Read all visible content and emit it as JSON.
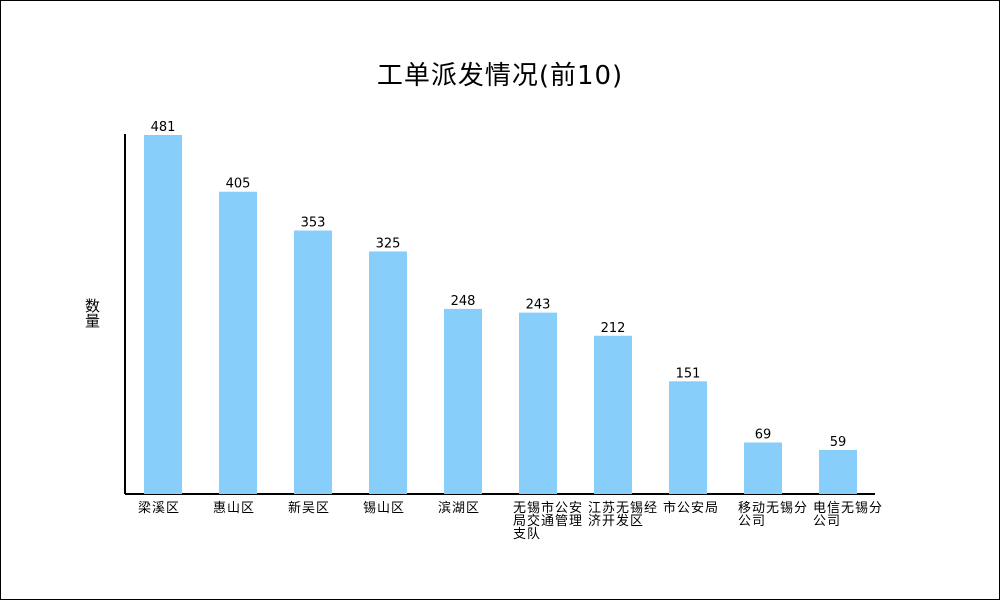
{
  "chart_data": {
    "type": "bar",
    "title": "工单派发情况(前10)",
    "ylabel": "数量",
    "xlabel": "",
    "categories": [
      "梁溪区",
      "惠山区",
      "新吴区",
      "锡山区",
      "滨湖区",
      "无锡市公安局交通管理支队",
      "江苏无锡经济开发区",
      "市公安局",
      "移动无锡分公司",
      "电信无锡分公司"
    ],
    "values": [
      481,
      405,
      353,
      325,
      248,
      243,
      212,
      151,
      69,
      59
    ],
    "ylim": [
      0,
      481
    ],
    "grid": false,
    "legend": "none",
    "bar_color": "#87cefa",
    "axis_color": "#000000"
  }
}
